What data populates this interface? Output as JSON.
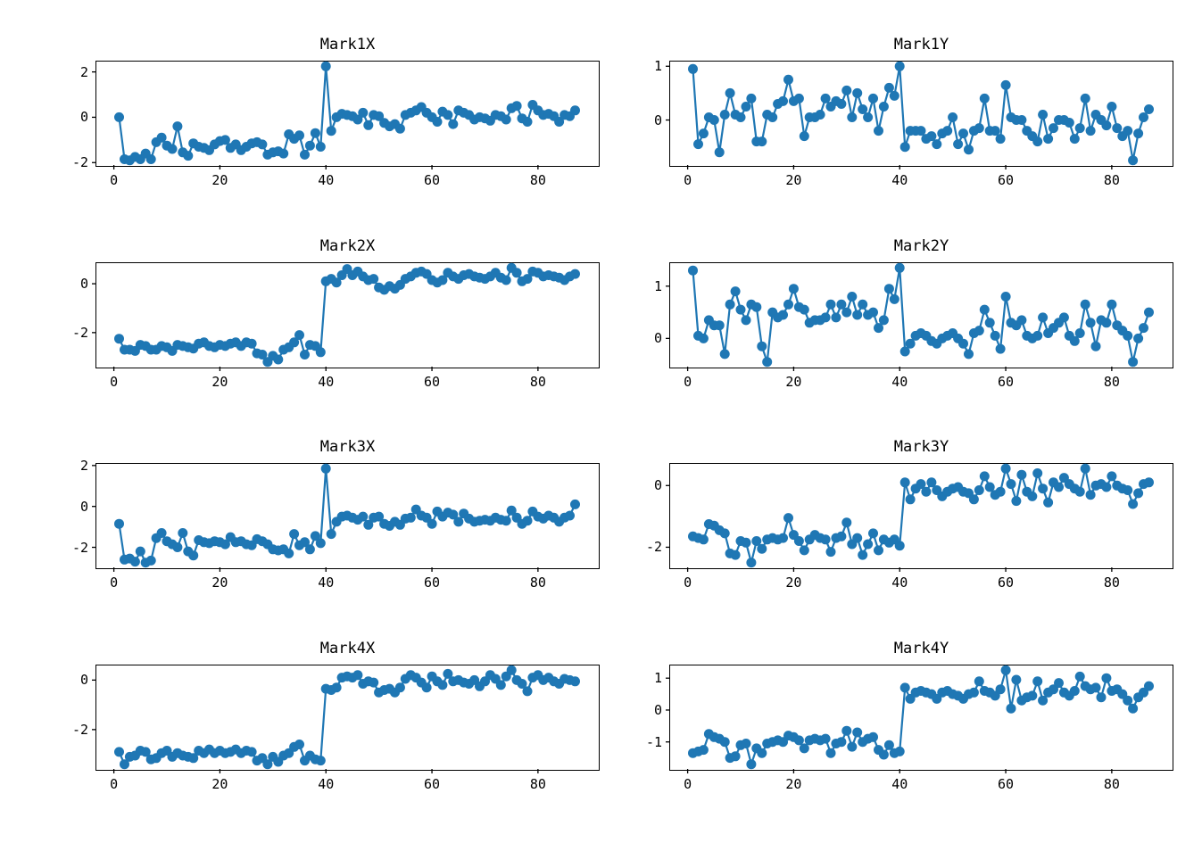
{
  "figure": {
    "background": "#ffffff",
    "series_color": "#1f77b4",
    "spine_color": "#000000"
  },
  "x_values": [
    1,
    2,
    3,
    4,
    5,
    6,
    7,
    8,
    9,
    10,
    11,
    12,
    13,
    14,
    15,
    16,
    17,
    18,
    19,
    20,
    21,
    22,
    23,
    24,
    25,
    26,
    27,
    28,
    29,
    30,
    31,
    32,
    33,
    34,
    35,
    36,
    37,
    38,
    39,
    40,
    41,
    42,
    43,
    44,
    45,
    46,
    47,
    48,
    49,
    50,
    51,
    52,
    53,
    54,
    55,
    56,
    57,
    58,
    59,
    60,
    61,
    62,
    63,
    64,
    65,
    66,
    67,
    68,
    69,
    70,
    71,
    72,
    73,
    74,
    75,
    76,
    77,
    78,
    79,
    80,
    81,
    82,
    83,
    84,
    85,
    86,
    87
  ],
  "chart_data": [
    {
      "type": "line",
      "title": "Mark1X",
      "marker": "circle",
      "grid": false,
      "xticks": [
        0,
        20,
        40,
        60,
        80
      ],
      "yticks": [
        -2,
        0,
        2
      ],
      "xlim": [
        -3.3,
        91.3
      ],
      "values": [
        0.0,
        -1.85,
        -1.9,
        -1.75,
        -1.85,
        -1.6,
        -1.85,
        -1.1,
        -0.9,
        -1.25,
        -1.4,
        -0.4,
        -1.55,
        -1.7,
        -1.15,
        -1.3,
        -1.35,
        -1.45,
        -1.2,
        -1.05,
        -1.0,
        -1.35,
        -1.2,
        -1.45,
        -1.3,
        -1.15,
        -1.1,
        -1.2,
        -1.65,
        -1.55,
        -1.5,
        -1.6,
        -0.75,
        -0.95,
        -0.8,
        -1.65,
        -1.25,
        -0.7,
        -1.3,
        2.25,
        -0.6,
        0.0,
        0.15,
        0.1,
        0.05,
        -0.1,
        0.2,
        -0.35,
        0.1,
        0.05,
        -0.25,
        -0.4,
        -0.3,
        -0.5,
        0.1,
        0.2,
        0.3,
        0.45,
        0.2,
        0.0,
        -0.2,
        0.25,
        0.1,
        -0.3,
        0.3,
        0.2,
        0.1,
        -0.1,
        0.0,
        -0.05,
        -0.15,
        0.1,
        0.05,
        -0.1,
        0.4,
        0.5,
        -0.05,
        -0.2,
        0.55,
        0.3,
        0.1,
        0.15,
        0.05,
        -0.2,
        0.1,
        0.05,
        0.3
      ]
    },
    {
      "type": "line",
      "title": "Mark1Y",
      "marker": "circle",
      "grid": false,
      "xticks": [
        0,
        20,
        40,
        60,
        80
      ],
      "yticks": [
        0,
        1
      ],
      "xlim": [
        -3.3,
        91.3
      ],
      "values": [
        0.95,
        -0.45,
        -0.25,
        0.05,
        0.0,
        -0.6,
        0.1,
        0.5,
        0.1,
        0.05,
        0.25,
        0.4,
        -0.4,
        -0.4,
        0.1,
        0.05,
        0.3,
        0.35,
        0.75,
        0.35,
        0.4,
        -0.3,
        0.05,
        0.05,
        0.1,
        0.4,
        0.25,
        0.35,
        0.3,
        0.55,
        0.05,
        0.5,
        0.2,
        0.05,
        0.4,
        -0.2,
        0.25,
        0.6,
        0.45,
        1.0,
        -0.5,
        -0.2,
        -0.2,
        -0.2,
        -0.35,
        -0.3,
        -0.45,
        -0.25,
        -0.2,
        0.05,
        -0.45,
        -0.25,
        -0.55,
        -0.2,
        -0.15,
        0.4,
        -0.2,
        -0.2,
        -0.35,
        0.65,
        0.05,
        0.0,
        0.0,
        -0.2,
        -0.3,
        -0.4,
        0.1,
        -0.35,
        -0.15,
        0.0,
        0.0,
        -0.05,
        -0.35,
        -0.15,
        0.4,
        -0.2,
        0.1,
        0.0,
        -0.1,
        0.25,
        -0.15,
        -0.3,
        -0.2,
        -0.75,
        -0.25,
        0.05,
        0.2
      ]
    },
    {
      "type": "line",
      "title": "Mark2X",
      "marker": "circle",
      "grid": false,
      "xticks": [
        0,
        20,
        40,
        60,
        80
      ],
      "yticks": [
        -2,
        0
      ],
      "xlim": [
        -3.3,
        91.3
      ],
      "values": [
        -2.25,
        -2.7,
        -2.7,
        -2.75,
        -2.5,
        -2.55,
        -2.7,
        -2.7,
        -2.55,
        -2.6,
        -2.75,
        -2.5,
        -2.55,
        -2.6,
        -2.65,
        -2.45,
        -2.4,
        -2.55,
        -2.6,
        -2.5,
        -2.55,
        -2.45,
        -2.4,
        -2.55,
        -2.4,
        -2.45,
        -2.85,
        -2.9,
        -3.2,
        -2.95,
        -3.1,
        -2.7,
        -2.6,
        -2.4,
        -2.1,
        -2.9,
        -2.5,
        -2.55,
        -2.8,
        0.1,
        0.2,
        0.05,
        0.35,
        0.6,
        0.35,
        0.5,
        0.3,
        0.15,
        0.2,
        -0.15,
        -0.25,
        -0.1,
        -0.2,
        -0.05,
        0.2,
        0.3,
        0.45,
        0.5,
        0.4,
        0.15,
        0.05,
        0.15,
        0.45,
        0.3,
        0.2,
        0.35,
        0.4,
        0.3,
        0.25,
        0.2,
        0.3,
        0.45,
        0.25,
        0.15,
        0.65,
        0.45,
        0.1,
        0.2,
        0.5,
        0.45,
        0.3,
        0.35,
        0.3,
        0.25,
        0.15,
        0.3,
        0.4
      ]
    },
    {
      "type": "line",
      "title": "Mark2Y",
      "marker": "circle",
      "grid": false,
      "xticks": [
        0,
        20,
        40,
        60,
        80
      ],
      "yticks": [
        0,
        1
      ],
      "xlim": [
        -3.3,
        91.3
      ],
      "values": [
        1.3,
        0.05,
        0.0,
        0.35,
        0.25,
        0.25,
        -0.3,
        0.65,
        0.9,
        0.55,
        0.35,
        0.65,
        0.6,
        -0.15,
        -0.45,
        0.5,
        0.4,
        0.45,
        0.65,
        0.95,
        0.6,
        0.55,
        0.3,
        0.35,
        0.35,
        0.4,
        0.65,
        0.4,
        0.65,
        0.5,
        0.8,
        0.45,
        0.65,
        0.45,
        0.5,
        0.2,
        0.35,
        0.95,
        0.75,
        1.35,
        -0.25,
        -0.1,
        0.05,
        0.1,
        0.05,
        -0.05,
        -0.1,
        0.0,
        0.05,
        0.1,
        0.0,
        -0.1,
        -0.3,
        0.1,
        0.15,
        0.55,
        0.3,
        0.05,
        -0.2,
        0.8,
        0.3,
        0.25,
        0.35,
        0.05,
        0.0,
        0.05,
        0.4,
        0.1,
        0.2,
        0.3,
        0.4,
        0.05,
        -0.05,
        0.1,
        0.65,
        0.3,
        -0.15,
        0.35,
        0.3,
        0.65,
        0.25,
        0.15,
        0.05,
        -0.45,
        0.0,
        0.2,
        0.5
      ]
    },
    {
      "type": "line",
      "title": "Mark3X",
      "marker": "circle",
      "grid": false,
      "xticks": [
        0,
        20,
        40,
        60,
        80
      ],
      "yticks": [
        -2,
        0,
        2
      ],
      "xlim": [
        -3.3,
        91.3
      ],
      "values": [
        -0.85,
        -2.6,
        -2.55,
        -2.7,
        -2.2,
        -2.75,
        -2.65,
        -1.55,
        -1.3,
        -1.7,
        -1.85,
        -2.0,
        -1.3,
        -2.2,
        -2.4,
        -1.65,
        -1.75,
        -1.8,
        -1.7,
        -1.75,
        -1.85,
        -1.5,
        -1.75,
        -1.7,
        -1.85,
        -1.9,
        -1.6,
        -1.7,
        -1.85,
        -2.1,
        -2.15,
        -2.1,
        -2.3,
        -1.35,
        -1.9,
        -1.75,
        -2.1,
        -1.45,
        -1.8,
        1.85,
        -1.35,
        -0.75,
        -0.5,
        -0.45,
        -0.55,
        -0.65,
        -0.5,
        -0.9,
        -0.55,
        -0.5,
        -0.85,
        -0.95,
        -0.75,
        -0.9,
        -0.6,
        -0.55,
        -0.15,
        -0.45,
        -0.55,
        -0.85,
        -0.25,
        -0.5,
        -0.3,
        -0.4,
        -0.75,
        -0.35,
        -0.6,
        -0.75,
        -0.7,
        -0.65,
        -0.7,
        -0.55,
        -0.65,
        -0.7,
        -0.2,
        -0.55,
        -0.85,
        -0.7,
        -0.25,
        -0.5,
        -0.6,
        -0.45,
        -0.55,
        -0.75,
        -0.55,
        -0.45,
        0.1
      ]
    },
    {
      "type": "line",
      "title": "Mark3Y",
      "marker": "circle",
      "grid": false,
      "xticks": [
        0,
        20,
        40,
        60,
        80
      ],
      "yticks": [
        -2,
        0
      ],
      "xlim": [
        -3.3,
        91.3
      ],
      "values": [
        -1.65,
        -1.7,
        -1.75,
        -1.25,
        -1.3,
        -1.45,
        -1.55,
        -2.2,
        -2.25,
        -1.8,
        -1.85,
        -2.5,
        -1.8,
        -2.05,
        -1.75,
        -1.7,
        -1.75,
        -1.7,
        -1.05,
        -1.6,
        -1.8,
        -2.1,
        -1.75,
        -1.6,
        -1.7,
        -1.75,
        -2.15,
        -1.7,
        -1.65,
        -1.2,
        -1.9,
        -1.7,
        -2.25,
        -1.9,
        -1.55,
        -2.1,
        -1.75,
        -1.85,
        -1.75,
        -1.95,
        0.1,
        -0.45,
        -0.1,
        0.05,
        -0.2,
        0.1,
        -0.15,
        -0.35,
        -0.2,
        -0.1,
        -0.05,
        -0.2,
        -0.25,
        -0.45,
        -0.15,
        0.3,
        -0.05,
        -0.3,
        -0.2,
        0.55,
        0.05,
        -0.5,
        0.35,
        -0.2,
        -0.35,
        0.4,
        -0.1,
        -0.55,
        0.1,
        -0.05,
        0.25,
        0.05,
        -0.1,
        -0.2,
        0.55,
        -0.3,
        0.0,
        0.05,
        -0.05,
        0.3,
        0.0,
        -0.1,
        -0.15,
        -0.6,
        -0.25,
        0.05,
        0.1
      ]
    },
    {
      "type": "line",
      "title": "Mark4X",
      "marker": "circle",
      "grid": false,
      "xticks": [
        0,
        20,
        40,
        60,
        80
      ],
      "yticks": [
        -2,
        0
      ],
      "xlim": [
        -3.3,
        91.3
      ],
      "values": [
        -2.9,
        -3.4,
        -3.1,
        -3.05,
        -2.85,
        -2.9,
        -3.2,
        -3.15,
        -2.95,
        -2.85,
        -3.1,
        -2.95,
        -3.05,
        -3.1,
        -3.15,
        -2.85,
        -2.95,
        -2.8,
        -2.95,
        -2.85,
        -2.95,
        -2.9,
        -2.8,
        -2.95,
        -2.85,
        -2.9,
        -3.25,
        -3.15,
        -3.4,
        -3.1,
        -3.3,
        -3.05,
        -2.95,
        -2.7,
        -2.6,
        -3.25,
        -3.05,
        -3.2,
        -3.25,
        -0.35,
        -0.4,
        -0.3,
        0.1,
        0.15,
        0.1,
        0.2,
        -0.15,
        -0.05,
        -0.1,
        -0.5,
        -0.4,
        -0.35,
        -0.5,
        -0.3,
        0.05,
        0.2,
        0.1,
        -0.1,
        -0.3,
        0.15,
        -0.05,
        -0.2,
        0.25,
        -0.05,
        0.0,
        -0.1,
        -0.15,
        0.0,
        -0.25,
        -0.05,
        0.2,
        0.05,
        -0.2,
        0.15,
        0.4,
        0.0,
        -0.15,
        -0.45,
        0.1,
        0.2,
        0.0,
        0.1,
        -0.05,
        -0.15,
        0.05,
        0.0,
        -0.05
      ]
    },
    {
      "type": "line",
      "title": "Mark4Y",
      "marker": "circle",
      "grid": false,
      "xticks": [
        0,
        20,
        40,
        60,
        80
      ],
      "yticks": [
        -1,
        0,
        1
      ],
      "xlim": [
        -3.3,
        91.3
      ],
      "values": [
        -1.35,
        -1.3,
        -1.25,
        -0.75,
        -0.85,
        -0.9,
        -1.0,
        -1.5,
        -1.45,
        -1.1,
        -1.05,
        -1.7,
        -1.2,
        -1.35,
        -1.05,
        -1.0,
        -0.95,
        -1.0,
        -0.8,
        -0.85,
        -0.95,
        -1.2,
        -0.95,
        -0.9,
        -0.95,
        -0.9,
        -1.35,
        -1.05,
        -1.0,
        -0.65,
        -1.15,
        -0.7,
        -1.0,
        -0.9,
        -0.85,
        -1.25,
        -1.4,
        -1.1,
        -1.35,
        -1.3,
        0.7,
        0.35,
        0.55,
        0.6,
        0.55,
        0.5,
        0.35,
        0.55,
        0.6,
        0.5,
        0.45,
        0.35,
        0.5,
        0.55,
        0.9,
        0.6,
        0.55,
        0.45,
        0.65,
        1.25,
        0.05,
        0.95,
        0.3,
        0.4,
        0.45,
        0.9,
        0.3,
        0.55,
        0.65,
        0.85,
        0.55,
        0.45,
        0.6,
        1.05,
        0.75,
        0.65,
        0.7,
        0.4,
        1.0,
        0.6,
        0.65,
        0.5,
        0.3,
        0.05,
        0.4,
        0.55,
        0.75
      ]
    }
  ]
}
